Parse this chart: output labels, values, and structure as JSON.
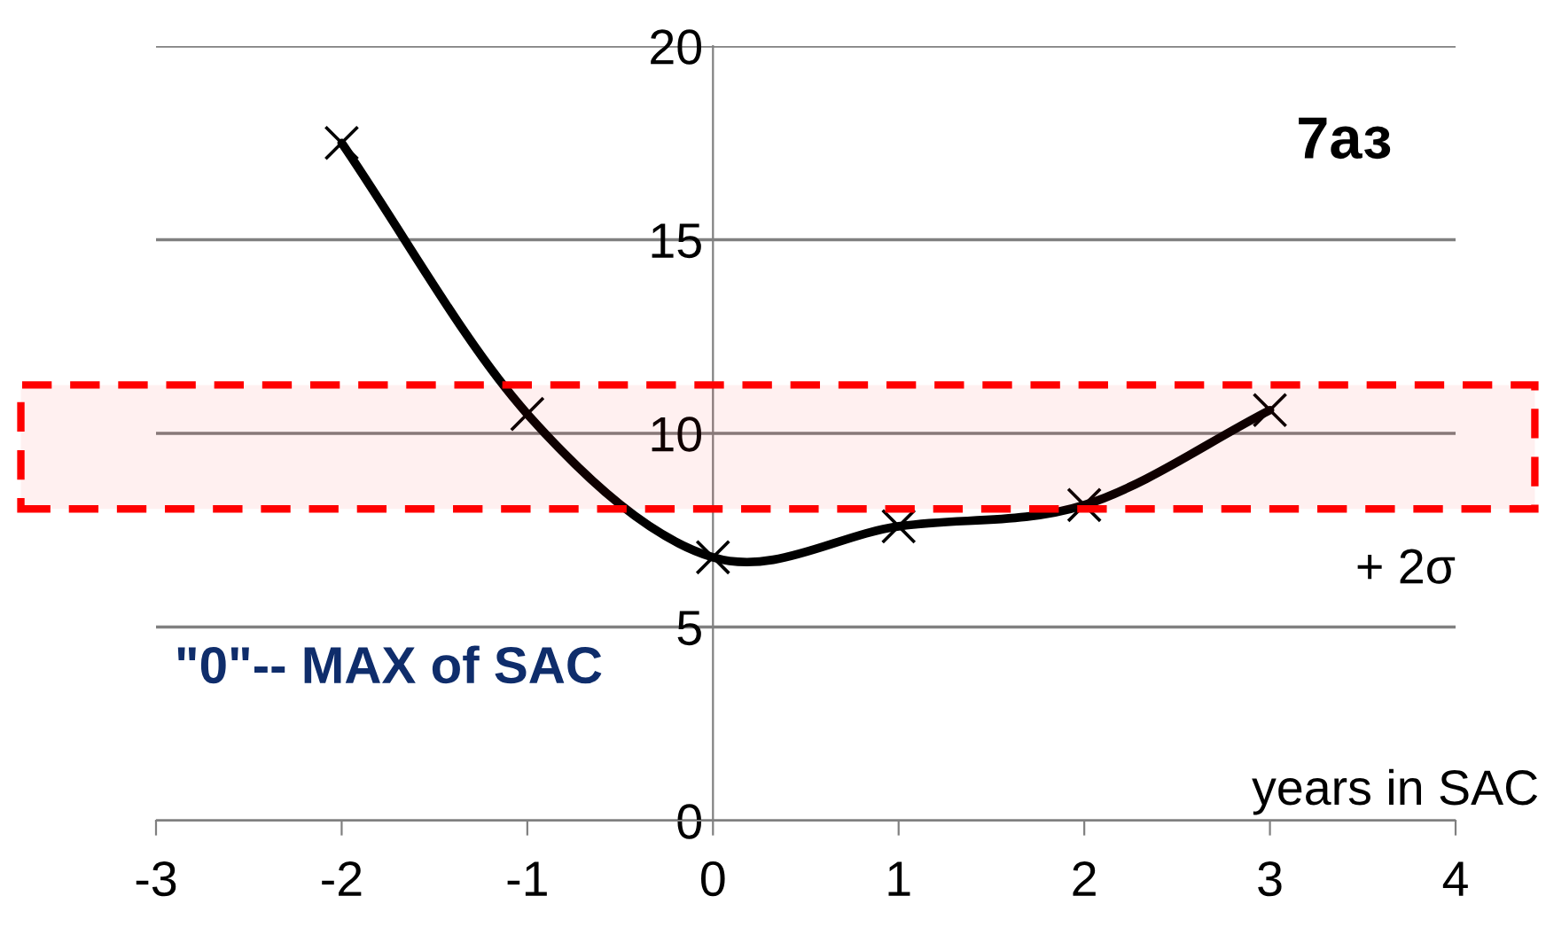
{
  "chart_data": {
    "type": "line",
    "title": "7аз",
    "xlabel": "years in SAC",
    "x": [
      -2,
      -1,
      0,
      1,
      2,
      3
    ],
    "series": [
      {
        "color": "#000000",
        "values": [
          17.5,
          10.5,
          6.8,
          7.6,
          8.15,
          10.6
        ]
      }
    ],
    "xlim": [
      -3,
      4
    ],
    "xticks": [
      -3,
      -2,
      -1,
      0,
      1,
      2,
      3,
      4
    ],
    "ylim": [
      0,
      20
    ],
    "yticks": [
      0,
      5,
      10,
      15,
      20
    ],
    "grid": "y",
    "marker": "cross",
    "line_style": "solid",
    "bands": [
      {
        "axis": "y",
        "from": 8.05,
        "to": 11.25,
        "label": "+ 2σ",
        "color": "#ff0000"
      }
    ],
    "annotations": [
      "\"0\"-- MAX of SAC"
    ]
  }
}
